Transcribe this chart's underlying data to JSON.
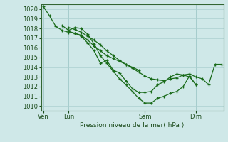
{
  "bg_color": "#cfe8e8",
  "grid_color": "#aacfcf",
  "line_color": "#1a6b1a",
  "marker_color": "#1a6b1a",
  "xlabel": "Pression niveau de la mer( hPa )",
  "ylim": [
    1009.5,
    1020.5
  ],
  "yticks": [
    1010,
    1011,
    1012,
    1013,
    1014,
    1015,
    1016,
    1017,
    1018,
    1019,
    1020
  ],
  "xtick_labels": [
    "Ven",
    "Lun",
    "Sam",
    "Dim"
  ],
  "xtick_positions": [
    0,
    24,
    96,
    144
  ],
  "xlim": [
    -2,
    170
  ],
  "series": [
    {
      "x": [
        0,
        6,
        12,
        18,
        24,
        30,
        36,
        42,
        48,
        54,
        60,
        66,
        72,
        78,
        84,
        90
      ],
      "y": [
        1020.3,
        1019.3,
        1018.2,
        1017.8,
        1017.6,
        1017.5,
        1017.3,
        1016.8,
        1016.2,
        1015.7,
        1015.2,
        1014.9,
        1014.6,
        1014.3,
        1014.0,
        1013.7
      ]
    },
    {
      "x": [
        18,
        24,
        30,
        36,
        42,
        48,
        54,
        60,
        66,
        72,
        78,
        84,
        90,
        96,
        102,
        108,
        114,
        120,
        126,
        132,
        138,
        144
      ],
      "y": [
        1018.3,
        1017.8,
        1018.1,
        1018.0,
        1017.4,
        1016.4,
        1015.2,
        1014.4,
        1013.6,
        1012.8,
        1012.2,
        1011.5,
        1010.8,
        1010.3,
        1010.3,
        1010.8,
        1011.0,
        1011.3,
        1011.5,
        1012.0,
        1013.1,
        1012.2
      ]
    },
    {
      "x": [
        24,
        30,
        36,
        42,
        48,
        54,
        60,
        66,
        72,
        78,
        84,
        90,
        96,
        102,
        108,
        114,
        120,
        126,
        132,
        138,
        144
      ],
      "y": [
        1017.7,
        1017.5,
        1017.2,
        1016.5,
        1015.7,
        1014.4,
        1014.7,
        1013.7,
        1013.4,
        1012.6,
        1011.8,
        1011.4,
        1011.4,
        1011.5,
        1012.2,
        1012.5,
        1013.0,
        1013.3,
        1013.2,
        1013.0,
        1012.2
      ]
    },
    {
      "x": [
        24,
        30,
        36,
        42,
        48,
        54,
        60,
        66,
        72,
        78,
        84,
        90,
        96,
        102,
        108,
        114,
        120,
        126,
        132,
        138,
        144,
        150,
        156,
        162,
        168
      ],
      "y": [
        1018.1,
        1017.9,
        1017.6,
        1017.2,
        1016.8,
        1016.3,
        1015.7,
        1015.2,
        1014.7,
        1014.3,
        1013.9,
        1013.5,
        1013.1,
        1012.8,
        1012.7,
        1012.6,
        1012.8,
        1012.9,
        1013.2,
        1013.3,
        1013.0,
        1012.8,
        1012.2,
        1014.3,
        1014.3
      ]
    }
  ]
}
